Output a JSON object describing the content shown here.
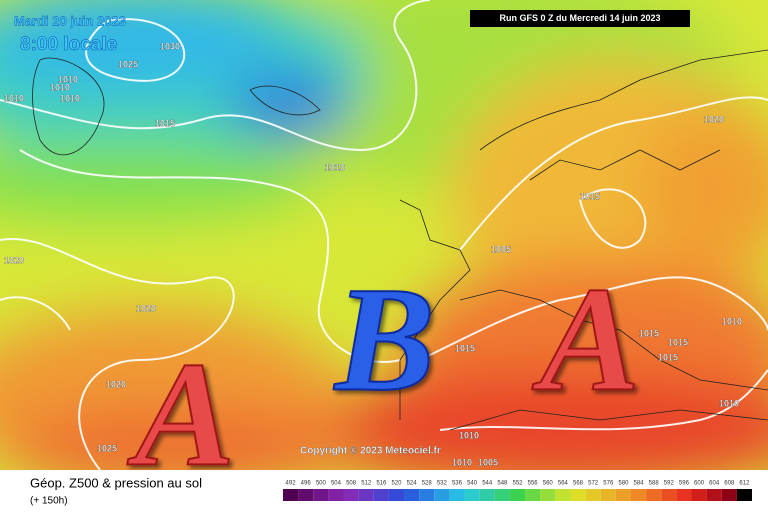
{
  "header": {
    "date": "Mardi 20 juin 2023",
    "time": "8:00 locale",
    "run": "Run GFS 0 Z du Mercredi 14 juin 2023"
  },
  "pressure_labels": [
    "1030",
    "1025",
    "1010",
    "1010",
    "1010",
    "1010",
    "1015",
    "1010",
    "1020",
    "1005",
    "1015",
    "1020",
    "1015",
    "1020",
    "1020",
    "1025",
    "1010",
    "1015",
    "1015",
    "1015",
    "1010",
    "1010",
    "1010",
    "1005"
  ],
  "systems": [
    "A",
    "B",
    "A"
  ],
  "copyright": "Copyright © 2023 Meteociel.fr",
  "legend": {
    "title": "Géop. Z500 & pression au sol",
    "subtitle": "(+ 150h)",
    "scale": [
      492,
      496,
      500,
      504,
      508,
      512,
      516,
      520,
      524,
      528,
      532,
      536,
      540,
      544,
      548,
      552,
      556,
      560,
      564,
      568,
      572,
      576,
      580,
      584,
      588,
      592,
      596,
      600,
      604,
      608,
      612
    ]
  }
}
